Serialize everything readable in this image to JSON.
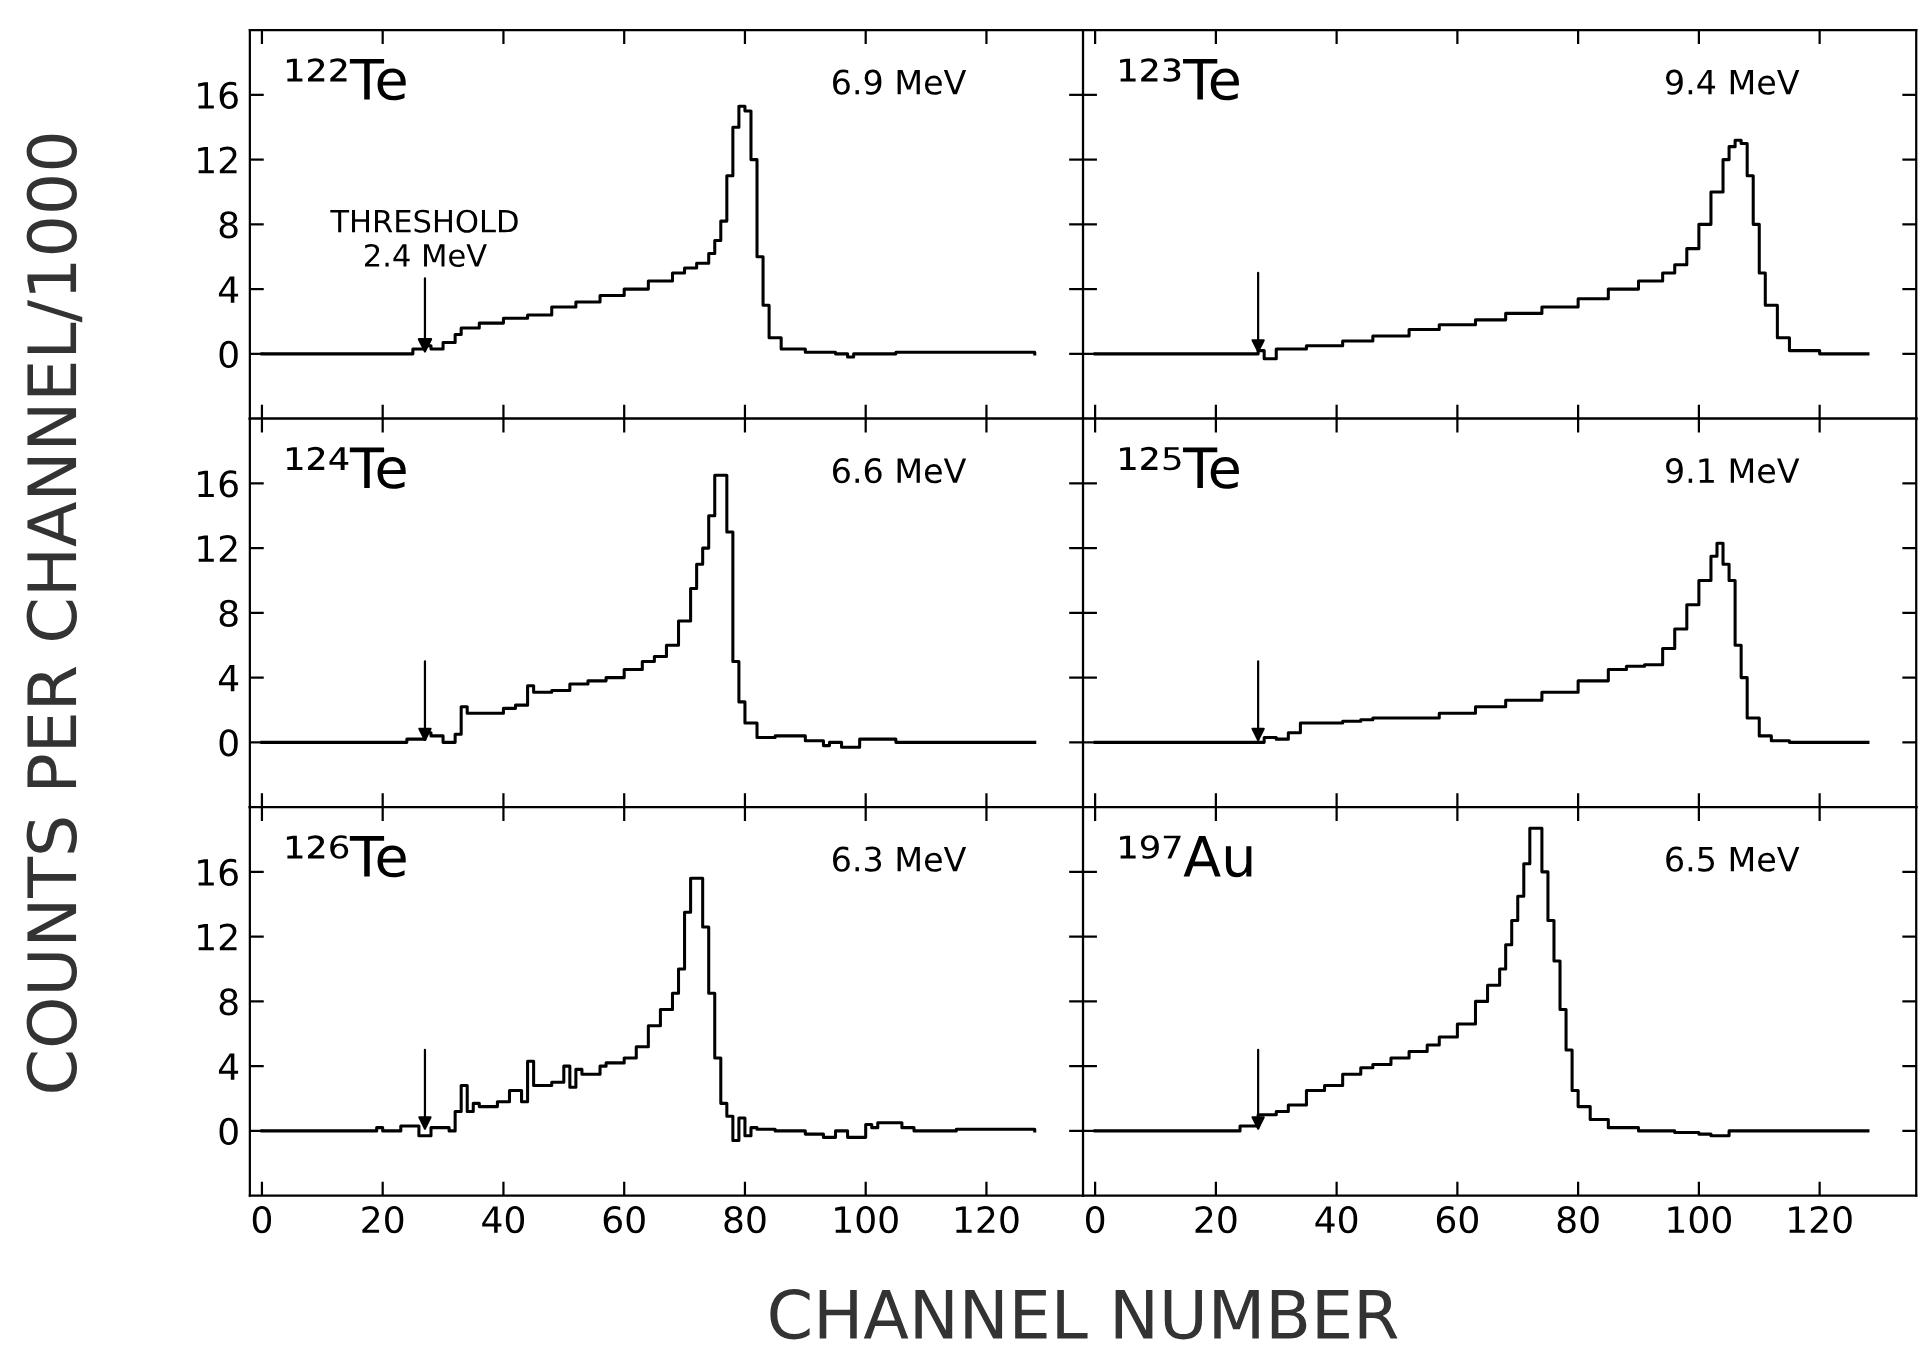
{
  "chart_data": [
    {
      "type": "step",
      "ylabel": "COUNTS PER CHANNEL/1000",
      "annotations": [
        "¹²²Te",
        "6.9 MeV",
        {
          "text": "THRESHOLD\n2.4 MeV",
          "x": 27,
          "y": 0
        }
      ],
      "xlim": [
        -2,
        136
      ],
      "ylim": [
        -4,
        20
      ],
      "xticks": [
        0,
        20,
        40,
        60,
        80,
        100,
        120
      ],
      "yticks": [
        0,
        4,
        8,
        12,
        16
      ],
      "tick_labels": "y",
      "grid": false,
      "legend": false,
      "series": [
        {
          "color": "#000000",
          "x": [
            0,
            10,
            20,
            24,
            25,
            27,
            28,
            30,
            32,
            33,
            36,
            40,
            44,
            48,
            52,
            56,
            60,
            64,
            68,
            70,
            72,
            74,
            75,
            76,
            77,
            78,
            79,
            80,
            81,
            82,
            83,
            84,
            86,
            90,
            95,
            97,
            98,
            100,
            105,
            128
          ],
          "values": [
            0,
            0,
            0,
            0,
            0.3,
            0.5,
            0.3,
            0.7,
            1.2,
            1.6,
            1.9,
            2.2,
            2.4,
            2.9,
            3.2,
            3.6,
            4.0,
            4.5,
            5.0,
            5.3,
            5.6,
            6.2,
            7.0,
            8.2,
            11,
            14,
            15.3,
            15,
            12,
            6,
            3,
            1,
            0.3,
            0.1,
            0,
            -0.2,
            0,
            0,
            0.1,
            0
          ]
        }
      ]
    },
    {
      "type": "step",
      "annotations": [
        "¹²³Te",
        "9.4 MeV"
      ],
      "xlim": [
        -2,
        136
      ],
      "ylim": [
        -4,
        20
      ],
      "xticks": [
        0,
        20,
        40,
        60,
        80,
        100,
        120
      ],
      "yticks": [
        0,
        4,
        8,
        12,
        16
      ],
      "tick_labels": false,
      "grid": false,
      "legend": false,
      "series": [
        {
          "color": "#000000",
          "x": [
            0,
            10,
            20,
            25,
            27,
            28,
            30,
            35,
            41,
            46,
            52,
            57,
            63,
            68,
            74,
            80,
            85,
            90,
            94,
            96,
            98,
            100,
            102,
            104,
            105,
            106,
            107,
            108,
            109,
            110,
            111,
            113,
            115,
            120,
            128
          ],
          "values": [
            0,
            0,
            0,
            0,
            0.2,
            -0.3,
            0.3,
            0.5,
            0.8,
            1.1,
            1.5,
            1.8,
            2.1,
            2.5,
            2.9,
            3.4,
            4.0,
            4.5,
            5.0,
            5.5,
            6.5,
            8,
            10,
            12,
            12.8,
            13.2,
            13,
            11,
            8,
            5,
            3,
            1,
            0.2,
            0,
            0
          ]
        }
      ]
    },
    {
      "type": "step",
      "annotations": [
        "¹²⁴Te",
        "6.6 MeV"
      ],
      "xlim": [
        -2,
        136
      ],
      "ylim": [
        -4,
        20
      ],
      "xticks": [
        0,
        20,
        40,
        60,
        80,
        100,
        120
      ],
      "yticks": [
        0,
        4,
        8,
        12,
        16
      ],
      "tick_labels": "y",
      "grid": false,
      "legend": false,
      "series": [
        {
          "color": "#000000",
          "x": [
            0,
            10,
            20,
            24,
            26,
            27,
            28,
            30,
            32,
            33,
            34,
            36,
            40,
            42,
            44,
            45,
            48,
            51,
            54,
            57,
            60,
            63,
            65,
            67,
            69,
            71,
            72,
            73,
            74,
            75,
            77,
            78,
            79,
            80,
            82,
            85,
            90,
            93,
            94,
            96,
            99,
            105,
            128
          ],
          "values": [
            0,
            0,
            0,
            0.2,
            0.2,
            0.6,
            0.4,
            0,
            0.5,
            2.2,
            1.8,
            1.8,
            2.1,
            2.3,
            3.5,
            3.1,
            3.2,
            3.6,
            3.8,
            4.0,
            4.5,
            5.0,
            5.3,
            6.0,
            7.5,
            9.5,
            11,
            12,
            14,
            16.5,
            13,
            5,
            2.5,
            1.2,
            0.3,
            0.4,
            0.1,
            -0.2,
            0,
            -0.3,
            0.2,
            0,
            0
          ]
        }
      ]
    },
    {
      "type": "step",
      "annotations": [
        "¹²⁵Te",
        "9.1 MeV"
      ],
      "xlim": [
        -2,
        136
      ],
      "ylim": [
        -4,
        20
      ],
      "xticks": [
        0,
        20,
        40,
        60,
        80,
        100,
        120
      ],
      "yticks": [
        0,
        4,
        8,
        12,
        16
      ],
      "tick_labels": false,
      "grid": false,
      "legend": false,
      "series": [
        {
          "color": "#000000",
          "x": [
            0,
            10,
            20,
            25,
            27,
            28,
            30,
            32,
            34,
            38,
            41,
            44,
            46,
            50,
            52,
            57,
            63,
            68,
            74,
            80,
            85,
            88,
            91,
            94,
            96,
            98,
            100,
            102,
            103,
            104,
            105,
            106,
            107,
            108,
            110,
            112,
            115,
            128
          ],
          "values": [
            0,
            0,
            0,
            0,
            0,
            0.3,
            0.2,
            0.6,
            1.2,
            1.2,
            1.3,
            1.4,
            1.5,
            1.5,
            1.5,
            1.8,
            2.2,
            2.6,
            3.1,
            3.8,
            4.5,
            4.7,
            4.8,
            5.8,
            7,
            8.5,
            10,
            11.5,
            12.3,
            11,
            10,
            6,
            4,
            1.5,
            0.4,
            0.1,
            0,
            0
          ]
        }
      ]
    },
    {
      "type": "step",
      "xlabel": "CHANNEL NUMBER",
      "annotations": [
        "¹²⁶Te",
        "6.3 MeV"
      ],
      "xlim": [
        -2,
        136
      ],
      "ylim": [
        -4,
        20
      ],
      "xticks": [
        0,
        20,
        40,
        60,
        80,
        100,
        120
      ],
      "yticks": [
        0,
        4,
        8,
        12,
        16
      ],
      "grid": false,
      "legend": false,
      "series": [
        {
          "color": "#000000",
          "x": [
            0,
            10,
            19,
            20,
            23,
            26,
            28,
            31,
            32,
            33,
            34,
            35,
            36,
            39,
            41,
            43,
            44,
            45,
            48,
            50,
            51,
            52,
            53,
            56,
            57,
            60,
            62,
            64,
            66,
            68,
            69,
            70,
            71,
            73,
            74,
            75,
            76,
            77,
            78,
            79,
            80,
            81,
            82,
            85,
            90,
            93,
            95,
            97,
            100,
            101,
            102,
            106,
            108,
            115,
            128
          ],
          "values": [
            0,
            0,
            0.2,
            0,
            0.3,
            -0.3,
            0.2,
            0,
            1.2,
            2.8,
            1.2,
            1.7,
            1.5,
            1.8,
            2.5,
            1.8,
            4.3,
            2.8,
            3.0,
            4.0,
            2.7,
            3.8,
            3.5,
            4.0,
            4.2,
            4.5,
            5.2,
            6.5,
            7.5,
            8.5,
            10,
            13.5,
            15.6,
            12.6,
            8.5,
            4.5,
            1.7,
            0.9,
            -0.6,
            0.8,
            -0.3,
            0.2,
            0.1,
            0,
            -0.2,
            -0.4,
            0,
            -0.4,
            0.4,
            0.2,
            0.5,
            0.2,
            0,
            0.1,
            0
          ]
        }
      ]
    },
    {
      "type": "step",
      "annotations": [
        "¹⁹⁷Au",
        "6.5 MeV"
      ],
      "xlim": [
        -2,
        136
      ],
      "ylim": [
        -4,
        20
      ],
      "xticks": [
        0,
        20,
        40,
        60,
        80,
        100,
        120
      ],
      "yticks": [
        0,
        4,
        8,
        12,
        16
      ],
      "tick_labels": "x",
      "grid": false,
      "legend": false,
      "series": [
        {
          "color": "#000000",
          "x": [
            0,
            10,
            20,
            24,
            27,
            30,
            32,
            35,
            38,
            41,
            44,
            46,
            49,
            52,
            55,
            57,
            60,
            63,
            65,
            67,
            68,
            69,
            70,
            71,
            72,
            74,
            75,
            76,
            77,
            78,
            79,
            80,
            82,
            85,
            90,
            96,
            100,
            102,
            105,
            128
          ],
          "values": [
            0,
            0,
            0,
            0.3,
            1.0,
            1.2,
            1.6,
            2.5,
            2.8,
            3.5,
            3.9,
            4.1,
            4.5,
            4.9,
            5.3,
            5.8,
            6.6,
            8,
            9,
            10,
            11.5,
            13,
            14.5,
            16.5,
            18.7,
            16,
            13,
            10.5,
            7.5,
            5,
            2.5,
            1.5,
            0.7,
            0.2,
            0,
            -0.1,
            -0.2,
            -0.3,
            0,
            0
          ]
        }
      ]
    }
  ]
}
